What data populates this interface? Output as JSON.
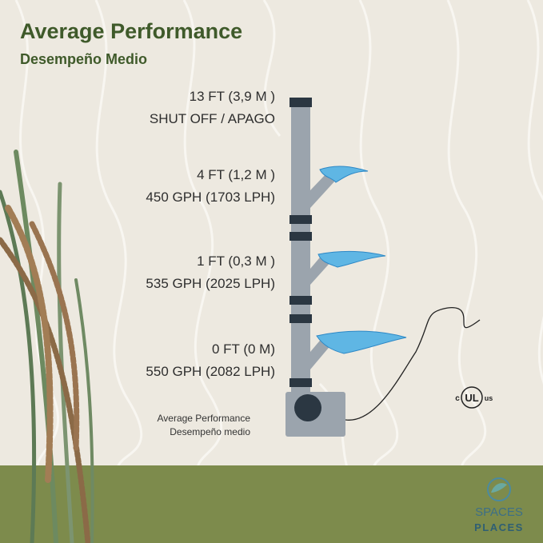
{
  "header": {
    "title": "Average Performance",
    "subtitle": "Desempeño Medio"
  },
  "levels": [
    {
      "height": "13 FT (3,9 M )",
      "flow": "SHUT OFF / APAGO"
    },
    {
      "height": "4 FT (1,2 M )",
      "flow": "450 GPH (1703 LPH)"
    },
    {
      "height": "1 FT (0,3 M )",
      "flow": "535 GPH (2025 LPH)"
    },
    {
      "height": "0 FT (0 M)",
      "flow": "550 GPH (2082 LPH)"
    }
  ],
  "caption": {
    "line1": "Average Performance",
    "line2": "Desempeño medio"
  },
  "certification": {
    "left": "c",
    "mark": "UL",
    "right": "us"
  },
  "logo": {
    "top": "SPACES",
    "bottom": "PLACES"
  }
}
